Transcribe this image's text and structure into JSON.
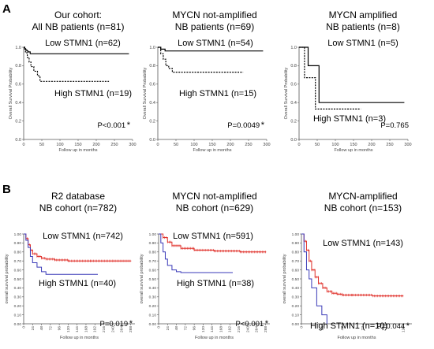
{
  "panel_labels": [
    "A",
    "B"
  ],
  "chart_data": [
    {
      "type": "line",
      "panel": "A",
      "title": "Our cohort:\nAll NB patients (n=81)",
      "xlabel": "Follow up in months",
      "ylabel": "Overall Survival Probability",
      "xlim": [
        0,
        300
      ],
      "ylim": [
        0.0,
        1.0
      ],
      "xticks": [
        "0",
        "50",
        "100",
        "150",
        "200",
        "250",
        "300"
      ],
      "yticks": [
        "0.0",
        "0.2",
        "0.4",
        "0.6",
        "0.8",
        "1.0"
      ],
      "p_value": "P<0.001",
      "star": "*",
      "series": [
        {
          "name": "Low STMN1 (n=62)",
          "color": "#000000",
          "dash": "solid",
          "x": [
            0,
            3,
            6,
            9,
            12,
            18,
            25,
            290
          ],
          "y": [
            1.0,
            0.98,
            0.97,
            0.96,
            0.95,
            0.93,
            0.93,
            0.93
          ]
        },
        {
          "name": "High STMN1 (n=19)",
          "color": "#000000",
          "dash": "dashed",
          "x": [
            0,
            5,
            10,
            15,
            20,
            28,
            38,
            45,
            235
          ],
          "y": [
            1.0,
            0.94,
            0.89,
            0.84,
            0.79,
            0.74,
            0.69,
            0.63,
            0.63
          ]
        }
      ]
    },
    {
      "type": "line",
      "panel": "A",
      "title": "MYCN not-amplified\nNB patients (n=69)",
      "xlabel": "Follow up in months",
      "ylabel": "Overall Survival Probability",
      "xlim": [
        0,
        300
      ],
      "ylim": [
        0.0,
        1.0
      ],
      "xticks": [
        "0",
        "50",
        "100",
        "150",
        "200",
        "250",
        "300"
      ],
      "yticks": [
        "0.0",
        "0.2",
        "0.4",
        "0.6",
        "0.8",
        "1.0"
      ],
      "p_value": "P=0.0049",
      "star": "*",
      "series": [
        {
          "name": "Low STMN1 (n=54)",
          "color": "#000000",
          "dash": "solid",
          "x": [
            0,
            8,
            20,
            290
          ],
          "y": [
            1.0,
            0.98,
            0.96,
            0.96
          ]
        },
        {
          "name": "High STMN1 (n=15)",
          "color": "#000000",
          "dash": "dashed",
          "x": [
            0,
            8,
            15,
            22,
            30,
            40,
            235
          ],
          "y": [
            1.0,
            0.93,
            0.87,
            0.8,
            0.77,
            0.73,
            0.73
          ]
        }
      ]
    },
    {
      "type": "line",
      "panel": "A",
      "title": "MYCN amplified\nNB patients (n=8)",
      "xlabel": "Follow up in months",
      "ylabel": "Overall Survival Probability",
      "xlim": [
        0,
        300
      ],
      "ylim": [
        0.0,
        1.0
      ],
      "xticks": [
        "0",
        "50",
        "100",
        "150",
        "200",
        "250",
        "300"
      ],
      "yticks": [
        "0.0",
        "0.2",
        "0.4",
        "0.6",
        "0.8",
        "1.0"
      ],
      "p_value": "P=0.765",
      "star": "",
      "series": [
        {
          "name": "Low STMN1 (n=5)",
          "color": "#000000",
          "dash": "solid",
          "x": [
            0,
            25,
            55,
            290
          ],
          "y": [
            1.0,
            0.8,
            0.4,
            0.4
          ]
        },
        {
          "name": "High STMN1 (n=3)",
          "color": "#000000",
          "dash": "dashed",
          "x": [
            0,
            15,
            30,
            45,
            170
          ],
          "y": [
            1.0,
            0.67,
            0.67,
            0.33,
            0.33
          ]
        }
      ]
    },
    {
      "type": "line",
      "panel": "B",
      "title": "R2 database\nNB cohort (n=782)",
      "xlabel": "Follow up in months",
      "ylabel": "overall survival probability",
      "xlim": [
        0,
        300
      ],
      "ylim": [
        0.0,
        1.0
      ],
      "xticks": [
        "0",
        "24",
        "48",
        "72",
        "96",
        "120",
        "144",
        "168",
        "192",
        "216",
        "240",
        "264",
        "288"
      ],
      "yticks": [
        "0.00",
        "0.10",
        "0.20",
        "0.30",
        "0.40",
        "0.50",
        "0.60",
        "0.70",
        "0.80",
        "0.90",
        "1.00"
      ],
      "p_value": "P=0.019",
      "star": "*",
      "series": [
        {
          "name": "Low STMN1 (n=742)",
          "color": "#e0302a",
          "dash": "solid",
          "x": [
            0,
            6,
            12,
            18,
            24,
            36,
            48,
            60,
            84,
            120,
            180,
            240,
            290
          ],
          "y": [
            1.0,
            0.95,
            0.88,
            0.82,
            0.78,
            0.75,
            0.73,
            0.72,
            0.71,
            0.7,
            0.7,
            0.7,
            0.7
          ]
        },
        {
          "name": "High STMN1 (n=40)",
          "color": "#3a3ab8",
          "dash": "solid",
          "x": [
            0,
            6,
            12,
            18,
            24,
            36,
            48,
            60,
            200
          ],
          "y": [
            1.0,
            0.93,
            0.85,
            0.75,
            0.68,
            0.63,
            0.58,
            0.55,
            0.55
          ]
        }
      ]
    },
    {
      "type": "line",
      "panel": "B",
      "title": "MYCN not-amplified\nNB cohort (n=629)",
      "xlabel": "Follow up in months",
      "ylabel": "overall survival probability",
      "xlim": [
        0,
        300
      ],
      "ylim": [
        0.0,
        1.0
      ],
      "xticks": [
        "0",
        "24",
        "48",
        "72",
        "96",
        "120",
        "144",
        "168",
        "192",
        "216",
        "240",
        "264",
        "288"
      ],
      "yticks": [
        "0.00",
        "0.10",
        "0.20",
        "0.30",
        "0.40",
        "0.50",
        "0.60",
        "0.70",
        "0.80",
        "0.90",
        "1.00"
      ],
      "p_value": "P<0.001",
      "star": "*",
      "series": [
        {
          "name": "Low STMN1 (n=591)",
          "color": "#e0302a",
          "dash": "solid",
          "x": [
            0,
            12,
            24,
            36,
            60,
            96,
            150,
            220,
            290
          ],
          "y": [
            1.0,
            0.96,
            0.91,
            0.87,
            0.84,
            0.82,
            0.81,
            0.8,
            0.8
          ]
        },
        {
          "name": "High STMN1 (n=38)",
          "color": "#3a3ab8",
          "dash": "solid",
          "x": [
            0,
            6,
            12,
            18,
            24,
            36,
            48,
            60,
            200
          ],
          "y": [
            1.0,
            0.9,
            0.8,
            0.72,
            0.65,
            0.6,
            0.58,
            0.57,
            0.57
          ]
        }
      ]
    },
    {
      "type": "line",
      "panel": "B",
      "title": "MYCN-amplified\nNB cohort (n=153)",
      "xlabel": "Follow up in months",
      "ylabel": "overall survival probability",
      "xlim": [
        0,
        130
      ],
      "ylim": [
        0.0,
        1.0
      ],
      "xticks": [
        "0",
        "24",
        "48",
        "72",
        "96",
        "120"
      ],
      "yticks": [
        "0.00",
        "0.10",
        "0.20",
        "0.30",
        "0.40",
        "0.50",
        "0.60",
        "0.70",
        "0.80",
        "0.90",
        "1.00"
      ],
      "p_value": "P=0.044",
      "star": "*",
      "series": [
        {
          "name": "Low STMN1 (n=143)",
          "color": "#e0302a",
          "dash": "solid",
          "x": [
            0,
            3,
            6,
            9,
            12,
            16,
            20,
            25,
            30,
            36,
            42,
            48,
            60,
            84,
            120
          ],
          "y": [
            1.0,
            0.92,
            0.82,
            0.7,
            0.6,
            0.52,
            0.45,
            0.4,
            0.36,
            0.34,
            0.33,
            0.32,
            0.32,
            0.31,
            0.31
          ]
        },
        {
          "name": "High STMN1 (n=10)",
          "color": "#3a3ab8",
          "dash": "solid",
          "x": [
            0,
            3,
            6,
            9,
            12,
            18,
            24,
            30
          ],
          "y": [
            1.0,
            0.8,
            0.6,
            0.5,
            0.4,
            0.2,
            0.1,
            0.0
          ]
        }
      ]
    }
  ]
}
